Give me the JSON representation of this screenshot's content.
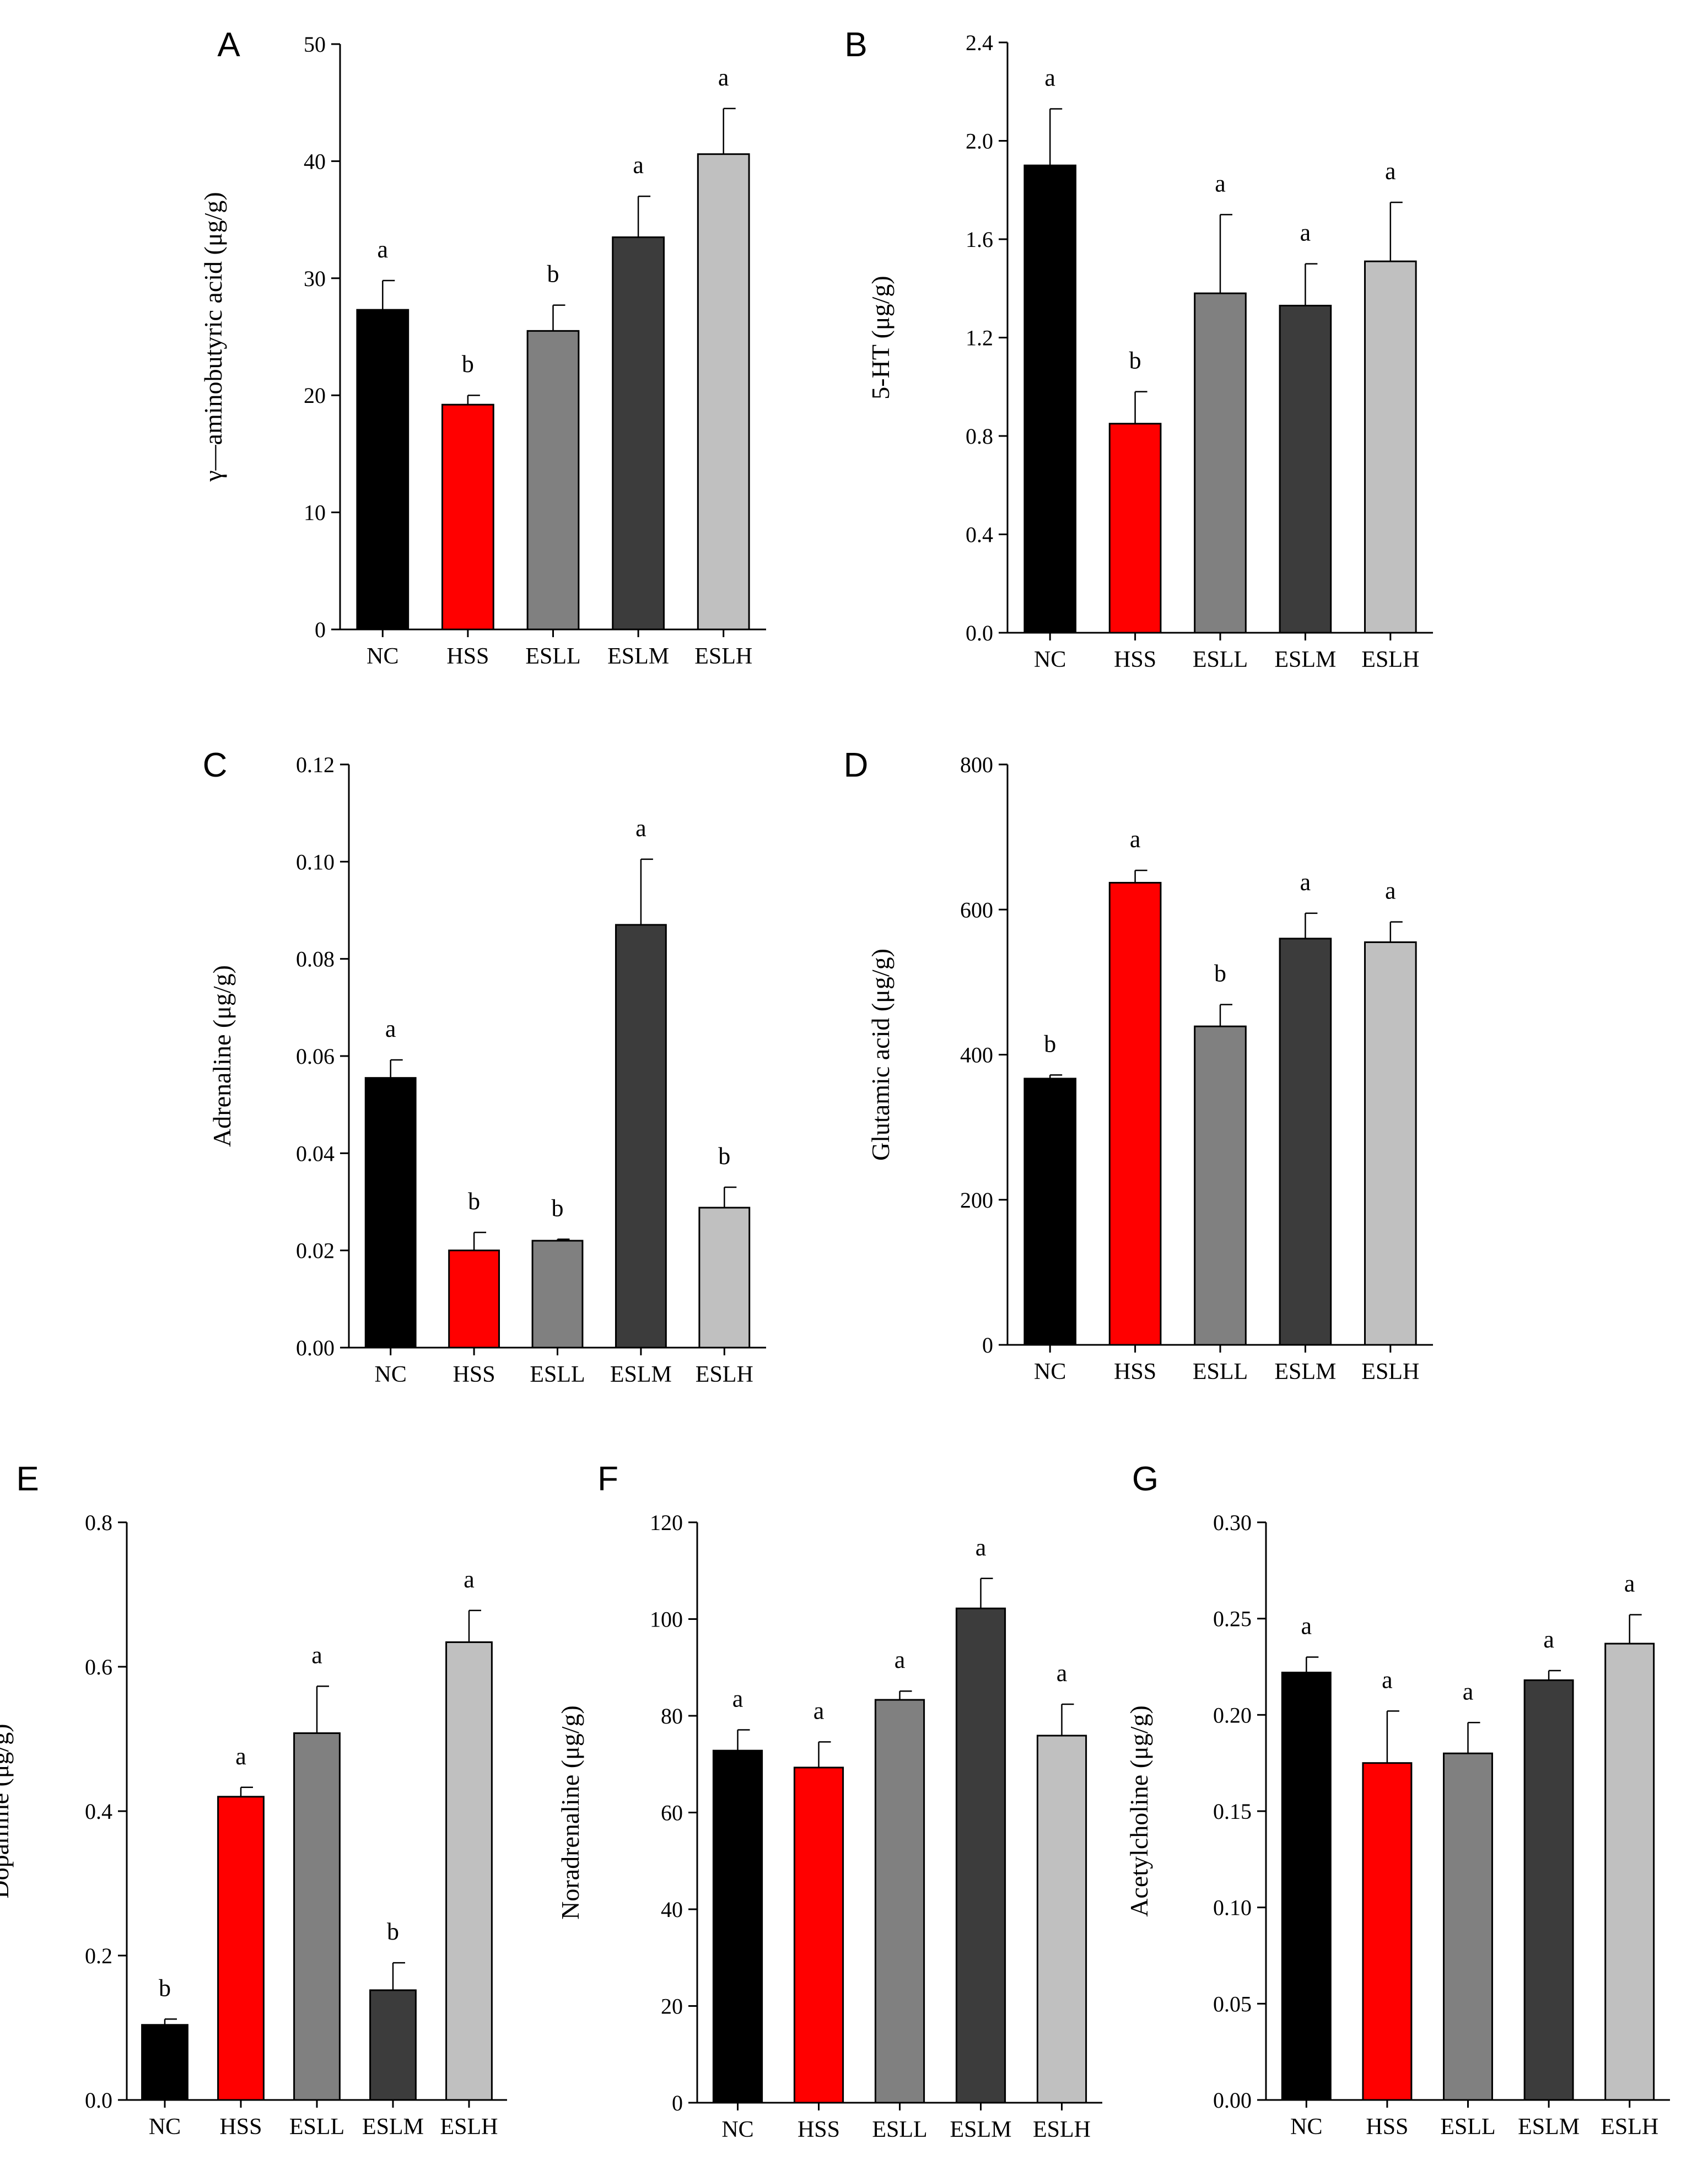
{
  "colors": {
    "NC": "#000000",
    "HSS": "#ff0000",
    "ESLL": "#808080",
    "ESLM": "#3c3c3c",
    "ESLH": "#c0c0c0"
  },
  "chart_data": [
    {
      "type": "bar",
      "panel": "A",
      "ylabel": "γ—aminobutyric acid (μg/g)",
      "categories": [
        "NC",
        "HSS",
        "ESLL",
        "ESLM",
        "ESLH"
      ],
      "values": [
        27.3,
        19.2,
        25.5,
        33.5,
        40.6
      ],
      "errors": [
        2.5,
        0.8,
        2.2,
        3.5,
        3.9
      ],
      "significance": [
        "a",
        "b",
        "b",
        "a",
        "a"
      ],
      "ylim": [
        0,
        50
      ],
      "yticks": [
        "0",
        "10",
        "20",
        "30",
        "40",
        "50"
      ]
    },
    {
      "type": "bar",
      "panel": "B",
      "ylabel": "5-HT (μg/g)",
      "categories": [
        "NC",
        "HSS",
        "ESLL",
        "ESLM",
        "ESLH"
      ],
      "values": [
        1.9,
        0.85,
        1.38,
        1.33,
        1.51
      ],
      "errors": [
        0.23,
        0.13,
        0.32,
        0.17,
        0.24
      ],
      "significance": [
        "a",
        "b",
        "a",
        "a",
        "a"
      ],
      "ylim": [
        0,
        2.4
      ],
      "yticks": [
        "0.0",
        "0.4",
        "0.8",
        "1.2",
        "1.6",
        "2.0",
        "2.4"
      ]
    },
    {
      "type": "bar",
      "panel": "C",
      "ylabel": "Adrenaline (μg/g)",
      "categories": [
        "NC",
        "HSS",
        "ESLL",
        "ESLM",
        "ESLH"
      ],
      "values": [
        0.0555,
        0.02,
        0.022,
        0.087,
        0.0288
      ],
      "errors": [
        0.0037,
        0.0037,
        0.0003,
        0.0135,
        0.0042
      ],
      "significance": [
        "a",
        "b",
        "b",
        "a",
        "b"
      ],
      "ylim": [
        0,
        0.12
      ],
      "yticks": [
        "0.00",
        "0.02",
        "0.04",
        "0.06",
        "0.08",
        "0.10",
        "0.12"
      ]
    },
    {
      "type": "bar",
      "panel": "D",
      "ylabel": "Glutamic acid (μg/g)",
      "categories": [
        "NC",
        "HSS",
        "ESLL",
        "ESLM",
        "ESLH"
      ],
      "values": [
        367,
        637,
        439,
        560,
        555
      ],
      "errors": [
        5,
        17,
        30,
        35,
        28
      ],
      "significance": [
        "b",
        "a",
        "b",
        "a",
        "a"
      ],
      "ylim": [
        0,
        800
      ],
      "yticks": [
        "0",
        "200",
        "400",
        "600",
        "800"
      ]
    },
    {
      "type": "bar",
      "panel": "E",
      "ylabel": "Dopamine (μg/g)",
      "categories": [
        "NC",
        "HSS",
        "ESLL",
        "ESLM",
        "ESLH"
      ],
      "values": [
        0.104,
        0.42,
        0.508,
        0.152,
        0.634
      ],
      "errors": [
        0.008,
        0.013,
        0.065,
        0.038,
        0.044
      ],
      "significance": [
        "b",
        "a",
        "a",
        "b",
        "a"
      ],
      "ylim": [
        0,
        0.8
      ],
      "yticks": [
        "0.0",
        "0.2",
        "0.4",
        "0.6",
        "0.8"
      ]
    },
    {
      "type": "bar",
      "panel": "F",
      "ylabel": "Noradrenaline (μg/g)",
      "categories": [
        "NC",
        "HSS",
        "ESLL",
        "ESLM",
        "ESLH"
      ],
      "values": [
        72.8,
        69.3,
        83.3,
        102.2,
        75.9
      ],
      "errors": [
        4.3,
        5.3,
        1.8,
        6.2,
        6.5
      ],
      "significance": [
        "a",
        "a",
        "a",
        "a",
        "a"
      ],
      "ylim": [
        0,
        120
      ],
      "yticks": [
        "0",
        "20",
        "40",
        "60",
        "80",
        "100",
        "120"
      ]
    },
    {
      "type": "bar",
      "panel": "G",
      "ylabel": "Acetylcholine (μg/g)",
      "categories": [
        "NC",
        "HSS",
        "ESLL",
        "ESLM",
        "ESLH"
      ],
      "values": [
        0.222,
        0.175,
        0.18,
        0.218,
        0.237
      ],
      "errors": [
        0.008,
        0.027,
        0.016,
        0.005,
        0.015
      ],
      "significance": [
        "a",
        "a",
        "a",
        "a",
        "a"
      ],
      "ylim": [
        0,
        0.3
      ],
      "yticks": [
        "0.00",
        "0.05",
        "0.10",
        "0.15",
        "0.20",
        "0.25",
        "0.30"
      ]
    }
  ]
}
